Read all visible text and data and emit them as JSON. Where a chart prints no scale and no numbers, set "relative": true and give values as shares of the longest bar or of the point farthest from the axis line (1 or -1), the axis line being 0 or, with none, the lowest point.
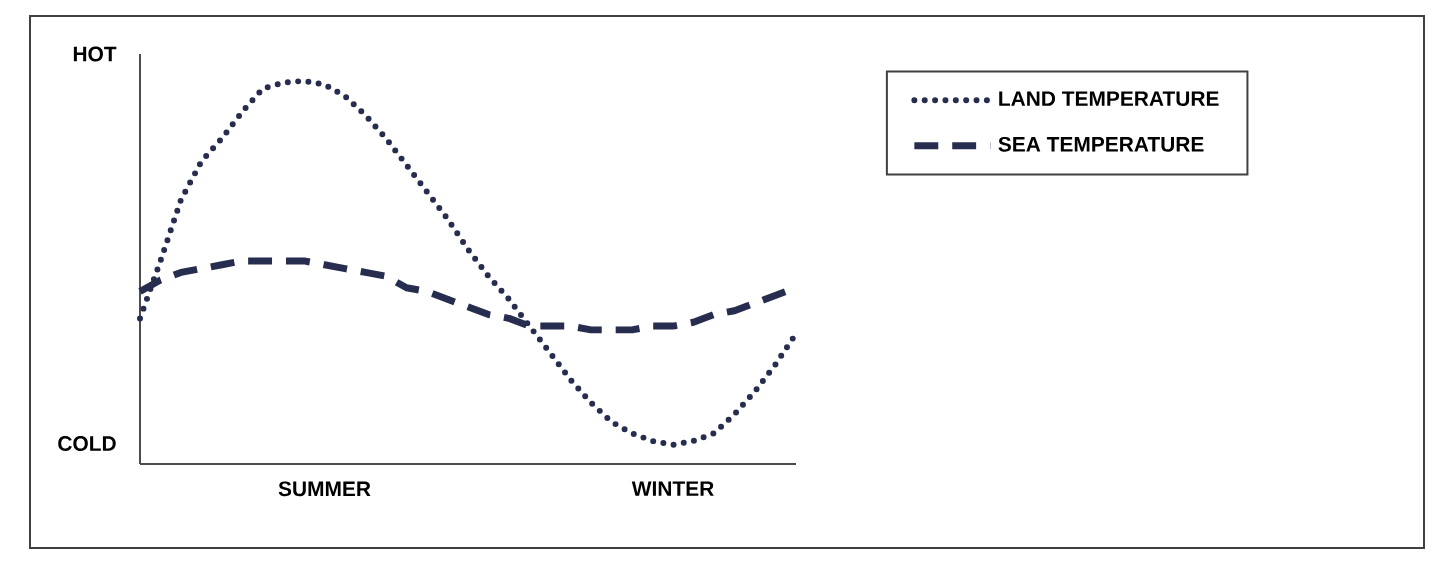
{
  "chart_data": {
    "type": "line",
    "relative": true,
    "legend": "right",
    "grid": false,
    "marker": "none",
    "categories": [
      null,
      null,
      null,
      null,
      null,
      null,
      null,
      null,
      null,
      "SUMMER",
      null,
      null,
      null,
      null,
      null,
      null,
      null,
      null,
      null,
      null,
      null,
      null,
      null,
      null,
      null,
      null,
      "WINTER",
      null,
      null,
      null,
      null,
      null,
      null
    ],
    "series": [
      {
        "name": "LAND TEMPERATURE",
        "color": "#272d4f",
        "line_style": "dotted",
        "values": [
          0.38,
          0.53,
          0.69,
          0.79,
          0.85,
          0.92,
          0.98,
          0.995,
          1,
          0.99,
          0.96,
          0.91,
          0.85,
          0.78,
          0.71,
          0.64,
          0.56,
          0.49,
          0.43,
          0.36,
          0.29,
          0.22,
          0.16,
          0.11,
          0.08,
          0.06,
          0.05,
          0.06,
          0.08,
          0.13,
          0.19,
          0.26,
          0.34
        ]
      },
      {
        "name": "SEA TEMPERATURE",
        "color": "#272d4f",
        "line_style": "dashed",
        "values": [
          0.45,
          0.48,
          0.5,
          0.51,
          0.52,
          0.53,
          0.53,
          0.53,
          0.53,
          0.52,
          0.51,
          0.5,
          0.49,
          0.46,
          0.45,
          0.43,
          0.41,
          0.39,
          0.38,
          0.36,
          0.36,
          0.36,
          0.35,
          0.35,
          0.35,
          0.36,
          0.36,
          0.37,
          0.39,
          0.4,
          0.42,
          0.44,
          0.46
        ]
      }
    ],
    "annotations": [
      "HOT",
      "COLD"
    ]
  }
}
